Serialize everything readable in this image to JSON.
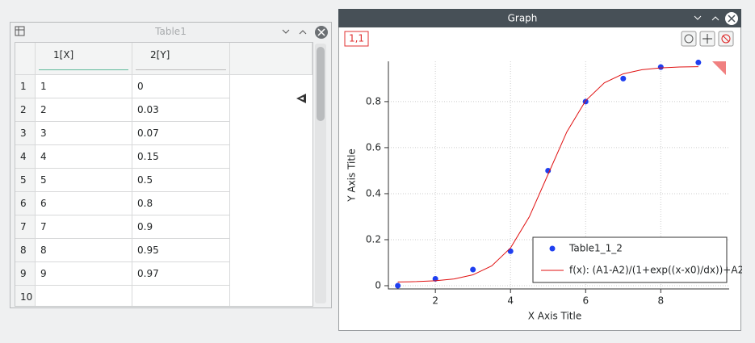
{
  "table_window": {
    "title": "Table1",
    "columns": [
      "1[X]",
      "2[Y]"
    ],
    "rows": [
      [
        1,
        1,
        0
      ],
      [
        2,
        2,
        0.03
      ],
      [
        3,
        3,
        0.07
      ],
      [
        4,
        4,
        0.15
      ],
      [
        5,
        5,
        0.5
      ],
      [
        6,
        6,
        0.8
      ],
      [
        7,
        7,
        0.9
      ],
      [
        8,
        8,
        0.95
      ],
      [
        9,
        9,
        0.97
      ],
      [
        10
      ]
    ]
  },
  "graph_window": {
    "title": "Graph",
    "layer_button": "1,1"
  },
  "chart_data": {
    "type": "scatter",
    "x_label": "X Axis Title",
    "y_label": "Y Axis Title",
    "xlim": [
      0.75,
      9.82
    ],
    "ylim": [
      -0.014,
      0.975
    ],
    "xticks": [
      2,
      4,
      6,
      8
    ],
    "yticks": [
      0,
      0.2,
      0.4,
      0.6,
      0.8
    ],
    "grid": true,
    "legend": "lower right",
    "series": [
      {
        "name": "Table1_1_2",
        "type": "scatter",
        "color": "#1f3ff0",
        "x": [
          1,
          2,
          3,
          4,
          5,
          6,
          7,
          8,
          9
        ],
        "values": [
          0,
          0.03,
          0.07,
          0.15,
          0.5,
          0.8,
          0.9,
          0.95,
          0.97
        ]
      },
      {
        "name": "f(x): (A1-A2)/(1+exp((x-x0)/dx))+A2",
        "type": "line",
        "color": "#e01010",
        "x": [
          1,
          1.5,
          2,
          2.5,
          3,
          3.5,
          4,
          4.5,
          5,
          5.5,
          6,
          6.5,
          7,
          7.5,
          8,
          8.5,
          9
        ],
        "values": [
          0.0162,
          0.0178,
          0.0213,
          0.0293,
          0.0473,
          0.0862,
          0.164,
          0.2992,
          0.484,
          0.6688,
          0.804,
          0.8818,
          0.9207,
          0.9387,
          0.9467,
          0.9503,
          0.9518
        ]
      }
    ]
  }
}
